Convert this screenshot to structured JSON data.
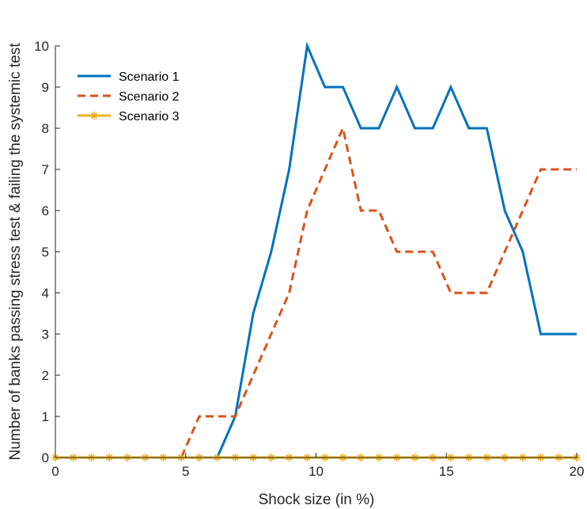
{
  "chart_data": {
    "type": "line",
    "xlabel": "Shock size (in %)",
    "ylabel": "Number of banks passing stress test & failing the systemic test",
    "xlim": [
      0,
      20
    ],
    "ylim": [
      0,
      10
    ],
    "xticks": [
      0,
      5,
      10,
      15,
      20
    ],
    "yticks": [
      0,
      1,
      2,
      3,
      4,
      5,
      6,
      7,
      8,
      9,
      10
    ],
    "grid": false,
    "legend_position": "top-left",
    "x": [
      0,
      0.69,
      1.38,
      2.07,
      2.76,
      3.45,
      4.14,
      4.83,
      5.52,
      6.21,
      6.9,
      7.59,
      8.28,
      8.97,
      9.66,
      10.34,
      11.03,
      11.72,
      12.41,
      13.1,
      13.79,
      14.48,
      15.17,
      15.86,
      16.55,
      17.24,
      17.93,
      18.62,
      19.31,
      20
    ],
    "series": [
      {
        "name": "Scenario 1",
        "color": "#0072BD",
        "style": "solid",
        "values": [
          0,
          0,
          0,
          0,
          0,
          0,
          0,
          0,
          0,
          0,
          1,
          3.5,
          5,
          7,
          10,
          9,
          9,
          8,
          8,
          9,
          8,
          8,
          9,
          8,
          8,
          6,
          5,
          3,
          3,
          3
        ]
      },
      {
        "name": "Scenario 2",
        "color": "#D95319",
        "style": "dashed",
        "values": [
          0,
          0,
          0,
          0,
          0,
          0,
          0,
          0,
          1,
          1,
          1,
          2,
          3,
          4,
          6,
          7,
          8,
          6,
          6,
          5,
          5,
          5,
          4,
          4,
          4,
          5,
          6,
          7,
          7,
          7
        ]
      },
      {
        "name": "Scenario 3",
        "color": "#EDB120",
        "style": "solid-asterisk",
        "values": [
          0,
          0,
          0,
          0,
          0,
          0,
          0,
          0,
          0,
          0,
          0,
          0,
          0,
          0,
          0,
          0,
          0,
          0,
          0,
          0,
          0,
          0,
          0,
          0,
          0,
          0,
          0,
          0,
          0,
          0
        ]
      }
    ]
  }
}
